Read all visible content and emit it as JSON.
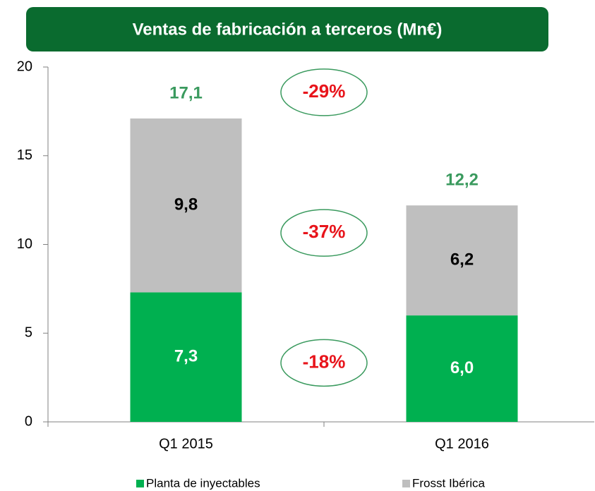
{
  "chart_data": {
    "type": "stacked-bar",
    "title": "Ventas de fabricación a terceros (Mn€)",
    "categories": [
      "Q1 2015",
      "Q1 2016"
    ],
    "series": [
      {
        "name": "Planta de inyectables",
        "color": "#00b050",
        "values": [
          7.3,
          6.0
        ],
        "value_labels": [
          "7,3",
          "6,0"
        ]
      },
      {
        "name": "Frosst Ibérica",
        "color": "#bfbfbf",
        "values": [
          9.8,
          6.2
        ],
        "value_labels": [
          "9,8",
          "6,2"
        ]
      }
    ],
    "totals": {
      "values": [
        17.1,
        12.2
      ],
      "value_labels": [
        "17,1",
        "12,2"
      ],
      "color": "#3a9a5e"
    },
    "annotations": [
      "-29%",
      "-37%",
      "-18%"
    ],
    "ylim": [
      0,
      20
    ],
    "yticks": [
      0,
      5,
      10,
      15,
      20
    ],
    "grid": false
  }
}
